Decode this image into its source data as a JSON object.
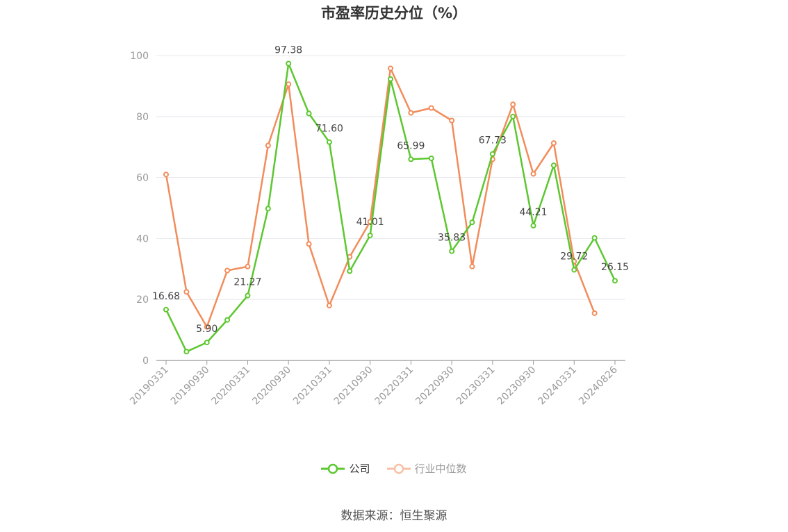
{
  "chart_data": {
    "type": "line",
    "title": "市盈率历史分位（%）",
    "x": [
      "20190331",
      "20190630",
      "20190930",
      "20191231",
      "20200331",
      "20200630",
      "20200930",
      "20201231",
      "20210331",
      "20210630",
      "20210930",
      "20211231",
      "20220331",
      "20220630",
      "20220930",
      "20221231",
      "20230331",
      "20230630",
      "20230930",
      "20231231",
      "20240331",
      "20240630",
      "20240826"
    ],
    "x_tick_labels": [
      "20190331",
      "20190930",
      "20200331",
      "20200930",
      "20210331",
      "20210930",
      "20220331",
      "20220930",
      "20230331",
      "20230930",
      "20240331",
      "20240826"
    ],
    "ylim": [
      0,
      100
    ],
    "yticks": [
      0,
      20,
      40,
      60,
      80,
      100
    ],
    "grid": true,
    "legend_position": "bottom-center",
    "series": [
      {
        "name": "公司",
        "color": "#5cc72f",
        "values": [
          16.68,
          2.9,
          5.9,
          13.3,
          21.27,
          49.8,
          97.38,
          81.0,
          71.6,
          29.3,
          41.01,
          92.3,
          65.99,
          66.3,
          35.83,
          45.3,
          67.73,
          80.0,
          44.21,
          64.0,
          29.72,
          40.2,
          26.15
        ],
        "labels": {
          "0": "16.68",
          "2": "5.90",
          "4": "21.27",
          "6": "97.38",
          "8": "71.60",
          "10": "41.01",
          "12": "65.99",
          "14": "35.83",
          "16": "67.73",
          "18": "44.21",
          "20": "29.72",
          "22": "26.15"
        }
      },
      {
        "name": "行业中位数",
        "color": "#f28c5b",
        "values": [
          61.0,
          22.5,
          11.0,
          29.5,
          30.8,
          70.5,
          90.6,
          38.2,
          18.0,
          34.0,
          45.5,
          95.8,
          81.2,
          82.8,
          78.7,
          30.8,
          66.0,
          84.0,
          61.2,
          71.3,
          32.5,
          15.5,
          null
        ]
      }
    ]
  },
  "legend": {
    "company": "公司",
    "industry": "行业中位数"
  },
  "source": "数据来源：恒生聚源"
}
